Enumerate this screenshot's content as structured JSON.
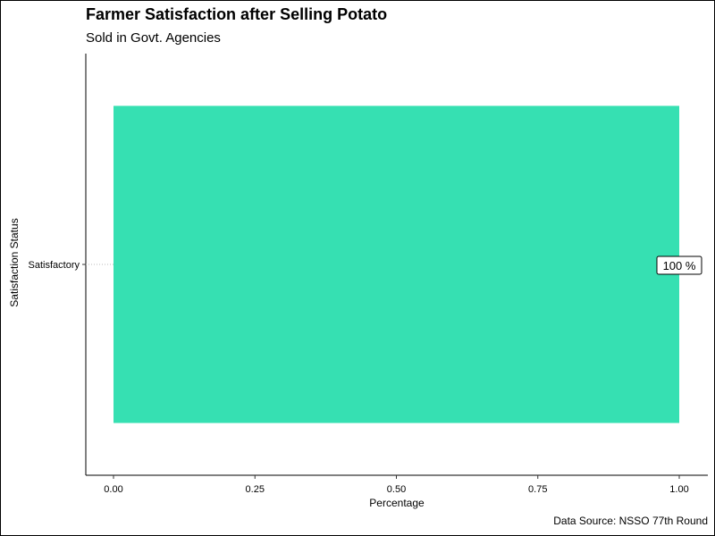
{
  "chart_data": {
    "type": "bar",
    "orientation": "horizontal",
    "title": "Farmer Satisfaction after Selling Potato",
    "subtitle": "Sold in Govt. Agencies",
    "caption": "Data Source: NSSO 77th Round",
    "xlabel": "Percentage",
    "ylabel": "Satisfaction Status",
    "categories": [
      "Satisfactory"
    ],
    "values": [
      1.0
    ],
    "data_labels": [
      "100 %"
    ],
    "xlim": [
      0,
      1
    ],
    "xticks": [
      "0.00",
      "0.25",
      "0.50",
      "0.75",
      "1.00"
    ],
    "bar_color": "#36E0B2",
    "grid": false
  }
}
